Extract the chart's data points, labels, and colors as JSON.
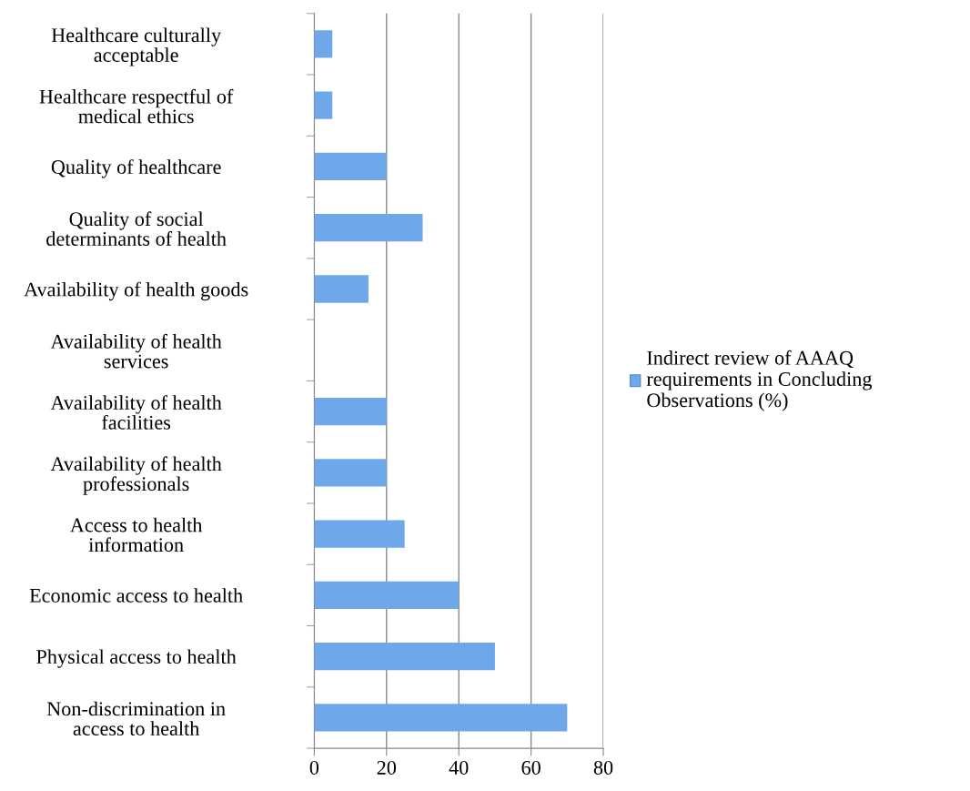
{
  "chart_data": {
    "type": "bar",
    "orientation": "horizontal",
    "categories": [
      "Healthcare culturally\nacceptable",
      "Healthcare respectful of\nmedical ethics",
      "Quality of healthcare",
      "Quality of social\ndeterminants of health",
      "Availability of health goods",
      "Availability of health\nservices",
      "Availability of health\nfacilities",
      "Availability of health\nprofessionals",
      "Access to health\ninformation",
      "Economic access to health",
      "Physical access to health",
      "Non-discrimination in\naccess to health"
    ],
    "series": [
      {
        "name": "Indirect review of AAAQ\nrequirements in Concluding\nObservations (%)",
        "color": "#6fa8ea",
        "values": [
          5,
          5,
          20,
          30,
          15,
          0,
          20,
          20,
          25,
          40,
          50,
          70
        ]
      }
    ],
    "xlim": [
      0,
      80
    ],
    "xticks": [
      0,
      20,
      40,
      60,
      80
    ],
    "grid": "x",
    "legend": "right"
  }
}
